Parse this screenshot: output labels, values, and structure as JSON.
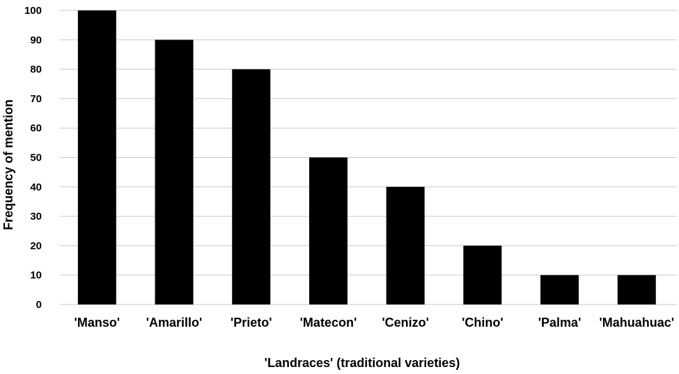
{
  "chart_data": {
    "type": "bar",
    "categories": [
      "'Manso'",
      "'Amarillo'",
      "'Prieto'",
      "'Matecon'",
      "'Cenizo'",
      "'Chino'",
      "'Palma'",
      "'Mahuahuac'"
    ],
    "values": [
      100,
      90,
      80,
      50,
      40,
      20,
      10,
      10
    ],
    "xlabel": "'Landraces' (traditional varieties)",
    "ylabel": "Frequency of mention",
    "ylim": [
      0,
      100
    ],
    "yticks": [
      0,
      10,
      20,
      30,
      40,
      50,
      60,
      70,
      80,
      90,
      100
    ],
    "grid": true,
    "bar_color": "#000000",
    "grid_color": "#c8c8c8"
  }
}
